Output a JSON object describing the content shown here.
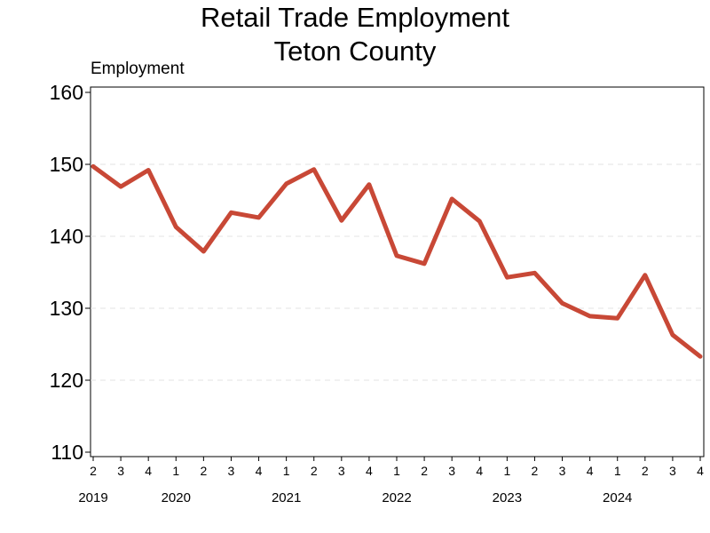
{
  "chart_data": {
    "type": "line",
    "title": "Retail Trade Employment",
    "subtitle": "Teton County",
    "ylabel": "Employment",
    "ylim": [
      110,
      160
    ],
    "yticks": [
      110,
      120,
      130,
      140,
      150,
      160
    ],
    "grid": "horizontal dashed",
    "line_color": "#c84836",
    "x_quarter_labels": [
      "2",
      "3",
      "4",
      "1",
      "2",
      "3",
      "4",
      "1",
      "2",
      "3",
      "4",
      "1",
      "2",
      "3",
      "4",
      "1",
      "2",
      "3",
      "4",
      "1",
      "2",
      "3",
      "4"
    ],
    "x_year_labels": [
      {
        "year": "2019",
        "at": 0
      },
      {
        "year": "2020",
        "at": 3
      },
      {
        "year": "2021",
        "at": 7
      },
      {
        "year": "2022",
        "at": 11
      },
      {
        "year": "2023",
        "at": 15
      },
      {
        "year": "2024",
        "at": 19
      }
    ],
    "series": [
      {
        "x": [
          "2019Q2",
          "2019Q3",
          "2019Q4",
          "2020Q1",
          "2020Q2",
          "2020Q3",
          "2020Q4",
          "2021Q1",
          "2021Q2",
          "2021Q3",
          "2021Q4",
          "2022Q1",
          "2022Q2",
          "2022Q3",
          "2022Q4",
          "2023Q1",
          "2023Q2",
          "2023Q3",
          "2023Q4",
          "2024Q1",
          "2024Q2",
          "2024Q3",
          "2024Q4"
        ],
        "values": [
          149.7,
          146.9,
          149.2,
          141.3,
          137.9,
          143.3,
          142.6,
          147.3,
          149.3,
          142.2,
          147.2,
          137.3,
          136.2,
          145.2,
          142.1,
          134.3,
          134.9,
          130.7,
          128.9,
          128.6,
          134.6,
          126.3,
          123.3
        ]
      }
    ]
  }
}
